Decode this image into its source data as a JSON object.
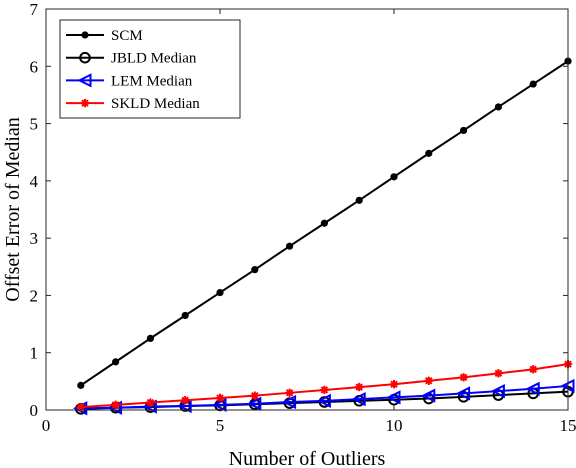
{
  "chart_data": {
    "type": "line",
    "title": "",
    "xlabel": "Number of Outliers",
    "ylabel": "Offset Error of Median",
    "xlim": [
      0,
      15
    ],
    "ylim": [
      0,
      7
    ],
    "xticks": [
      "0",
      "5",
      "10",
      "15"
    ],
    "yticks": [
      "0",
      "1",
      "2",
      "3",
      "4",
      "5",
      "6",
      "7"
    ],
    "grid": false,
    "legend_position": "top-left",
    "x": [
      1,
      2,
      3,
      4,
      5,
      6,
      7,
      8,
      9,
      10,
      11,
      12,
      13,
      14,
      15
    ],
    "series": [
      {
        "name": "SCM",
        "color": "#000000",
        "marker": "dot",
        "values": [
          0.43,
          0.84,
          1.25,
          1.65,
          2.05,
          2.45,
          2.86,
          3.26,
          3.66,
          4.07,
          4.48,
          4.88,
          5.29,
          5.69,
          6.09
        ]
      },
      {
        "name": "JBLD Median",
        "color": "#000000",
        "marker": "circle",
        "values": [
          0.02,
          0.04,
          0.05,
          0.07,
          0.08,
          0.1,
          0.12,
          0.14,
          0.16,
          0.18,
          0.2,
          0.23,
          0.26,
          0.29,
          0.32
        ]
      },
      {
        "name": "LEM Median",
        "color": "#0000ff",
        "marker": "triangle-left",
        "values": [
          0.03,
          0.04,
          0.06,
          0.07,
          0.09,
          0.11,
          0.14,
          0.16,
          0.19,
          0.22,
          0.25,
          0.29,
          0.33,
          0.37,
          0.42
        ]
      },
      {
        "name": "SKLD Median",
        "color": "#ff0000",
        "marker": "asterisk",
        "values": [
          0.05,
          0.09,
          0.13,
          0.17,
          0.21,
          0.25,
          0.3,
          0.35,
          0.4,
          0.45,
          0.51,
          0.57,
          0.64,
          0.71,
          0.8
        ]
      }
    ]
  }
}
